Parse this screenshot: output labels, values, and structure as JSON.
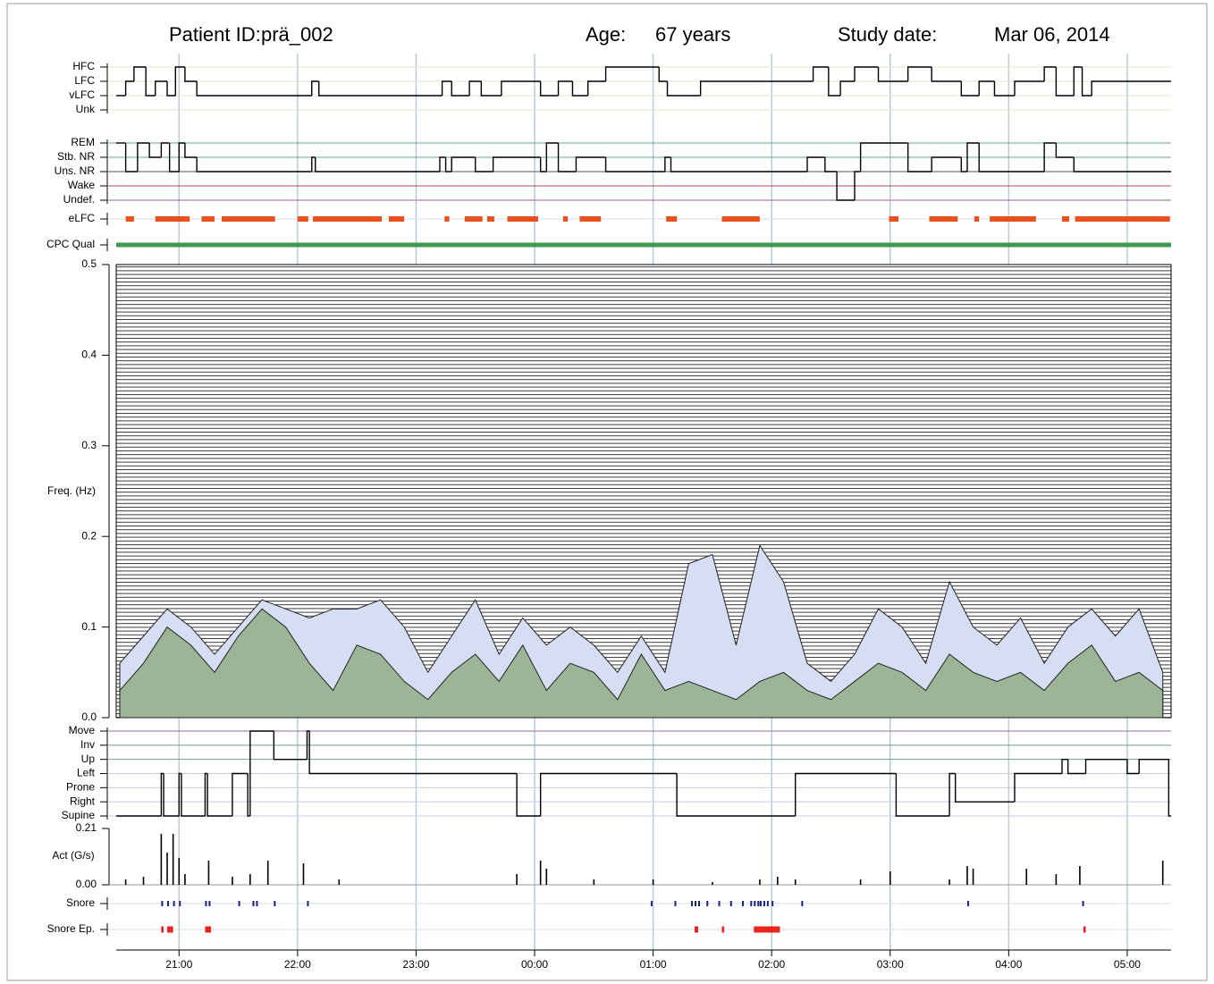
{
  "header": {
    "patient_id_label": "Patient ID:",
    "patient_id": "prä_002",
    "age_label": "Age:",
    "age": "67 years",
    "study_date_label": "Study date:",
    "study_date": "Mar 06, 2014"
  },
  "x_axis": {
    "xlim": [
      20.47,
      29.37
    ],
    "xticks": [
      {
        "value": 21,
        "label": "21:00"
      },
      {
        "value": 22,
        "label": "22:00"
      },
      {
        "value": 23,
        "label": "23:00"
      },
      {
        "value": 24,
        "label": "00:00"
      },
      {
        "value": 25,
        "label": "01:00"
      },
      {
        "value": 26,
        "label": "02:00"
      },
      {
        "value": 27,
        "label": "03:00"
      },
      {
        "value": 28,
        "label": "04:00"
      },
      {
        "value": 29,
        "label": "05:00"
      }
    ],
    "grid": true,
    "grid_color": "#b9cbd9"
  },
  "chart_data": [
    {
      "type": "step",
      "categories": [
        "HFC",
        "LFC",
        "vLFC",
        "Unk"
      ],
      "grid_colors": [
        "#e8e2c8",
        "#e8e2c8",
        "#e8e2c8",
        "#e8e2c8"
      ],
      "color": "#000000",
      "x": [
        20.47,
        20.55,
        20.62,
        20.72,
        20.8,
        20.9,
        20.97,
        21.05,
        21.15,
        22.12,
        22.18,
        23.22,
        23.3,
        23.45,
        23.55,
        23.72,
        24.05,
        24.2,
        24.32,
        24.45,
        24.6,
        25.05,
        25.12,
        25.4,
        26.35,
        26.48,
        26.58,
        26.7,
        26.9,
        27.15,
        27.35,
        27.6,
        27.75,
        27.88,
        28.05,
        28.3,
        28.4,
        28.55,
        28.62,
        28.7
      ],
      "values": [
        "vLFC",
        "LFC",
        "HFC",
        "vLFC",
        "LFC",
        "vLFC",
        "HFC",
        "LFC",
        "vLFC",
        "LFC",
        "vLFC",
        "LFC",
        "vLFC",
        "LFC",
        "vLFC",
        "LFC",
        "vLFC",
        "LFC",
        "vLFC",
        "LFC",
        "HFC",
        "LFC",
        "vLFC",
        "LFC",
        "HFC",
        "vLFC",
        "LFC",
        "HFC",
        "LFC",
        "HFC",
        "LFC",
        "vLFC",
        "LFC",
        "vLFC",
        "LFC",
        "HFC",
        "vLFC",
        "HFC",
        "vLFC",
        "LFC"
      ]
    },
    {
      "type": "step",
      "categories": [
        "REM",
        "Stb. NR",
        "Uns. NR",
        "Wake",
        "Undef."
      ],
      "grid_colors": [
        "#6aa58a",
        "#6aa58a",
        "#555555",
        "#b05050",
        "#9a6aa0"
      ],
      "color": "#000000",
      "x": [
        20.47,
        20.55,
        20.65,
        20.75,
        20.85,
        20.92,
        21.0,
        21.05,
        21.15,
        22.12,
        22.15,
        23.2,
        23.25,
        23.3,
        23.5,
        23.65,
        24.05,
        24.1,
        24.2,
        24.35,
        24.6,
        25.1,
        25.15,
        26.3,
        26.45,
        26.55,
        26.7,
        26.75,
        27.15,
        27.35,
        27.6,
        27.65,
        27.75,
        28.3,
        28.4,
        28.55
      ],
      "values": [
        "REM",
        "Uns. NR",
        "REM",
        "Stb. NR",
        "REM",
        "Uns. NR",
        "REM",
        "Stb. NR",
        "Uns. NR",
        "Stb. NR",
        "Uns. NR",
        "Stb. NR",
        "Uns. NR",
        "Stb. NR",
        "Uns. NR",
        "Stb. NR",
        "Uns. NR",
        "REM",
        "Uns. NR",
        "Stb. NR",
        "Uns. NR",
        "Stb. NR",
        "Uns. NR",
        "Stb. NR",
        "Uns. NR",
        "Undef.",
        "Uns. NR",
        "REM",
        "Uns. NR",
        "Stb. NR",
        "Uns. NR",
        "REM",
        "Uns. NR",
        "REM",
        "Stb. NR",
        "Uns. NR"
      ]
    },
    {
      "type": "events",
      "label": "eLFC",
      "color": "#e8501e",
      "x": [
        20.55,
        20.8,
        21.19,
        21.36,
        22.0,
        22.13,
        22.77,
        23.24,
        23.41,
        23.6,
        23.77,
        24.24,
        24.38,
        25.11,
        25.58,
        26.99,
        27.33,
        27.71,
        27.84,
        28.45,
        28.56
      ],
      "x_end": [
        20.62,
        21.09,
        21.3,
        21.81,
        22.09,
        22.71,
        22.9,
        23.28,
        23.56,
        23.66,
        24.03,
        24.28,
        24.56,
        25.2,
        25.9,
        27.07,
        27.57,
        27.75,
        28.23,
        28.51,
        29.36
      ]
    },
    {
      "type": "events",
      "label": "CPC Qual",
      "color": "#3f9a4f",
      "x": [
        20.47
      ],
      "x_end": [
        29.37
      ]
    },
    {
      "type": "area",
      "ylabel": "Freq. (Hz)",
      "ylim": [
        0,
        0.5
      ],
      "yticks": [
        {
          "value": 0,
          "label": "0.0"
        },
        0.1,
        0.2,
        0.3,
        0.4,
        0.5
      ],
      "x": [
        20.5,
        20.7,
        20.9,
        21.1,
        21.3,
        21.5,
        21.7,
        21.9,
        22.1,
        22.3,
        22.5,
        22.7,
        22.9,
        23.1,
        23.3,
        23.5,
        23.7,
        23.9,
        24.1,
        24.3,
        24.5,
        24.7,
        24.9,
        25.1,
        25.3,
        25.5,
        25.7,
        25.9,
        26.1,
        26.3,
        26.5,
        26.7,
        26.9,
        27.1,
        27.3,
        27.5,
        27.7,
        27.9,
        28.1,
        28.3,
        28.5,
        28.7,
        28.9,
        29.1,
        29.3
      ],
      "series": [
        {
          "color": "#d6def4",
          "values": [
            0.06,
            0.09,
            0.12,
            0.1,
            0.07,
            0.1,
            0.13,
            0.12,
            0.11,
            0.12,
            0.12,
            0.13,
            0.1,
            0.05,
            0.09,
            0.13,
            0.07,
            0.11,
            0.08,
            0.1,
            0.08,
            0.05,
            0.09,
            0.05,
            0.17,
            0.18,
            0.08,
            0.19,
            0.15,
            0.06,
            0.04,
            0.07,
            0.12,
            0.1,
            0.06,
            0.15,
            0.1,
            0.08,
            0.11,
            0.06,
            0.1,
            0.12,
            0.09,
            0.12,
            0.05
          ]
        },
        {
          "color": "#9bb596",
          "values": [
            0.03,
            0.06,
            0.1,
            0.08,
            0.05,
            0.09,
            0.12,
            0.1,
            0.06,
            0.03,
            0.08,
            0.07,
            0.04,
            0.02,
            0.05,
            0.07,
            0.04,
            0.08,
            0.03,
            0.06,
            0.05,
            0.02,
            0.07,
            0.03,
            0.04,
            0.03,
            0.02,
            0.04,
            0.05,
            0.03,
            0.02,
            0.04,
            0.06,
            0.05,
            0.03,
            0.07,
            0.05,
            0.04,
            0.05,
            0.03,
            0.06,
            0.08,
            0.04,
            0.05,
            0.03
          ]
        }
      ]
    },
    {
      "type": "step",
      "categories": [
        "Move",
        "Inv",
        "Up",
        "Left",
        "Prone",
        "Right",
        "Supine"
      ],
      "grid_colors": [
        "#9a6aa0",
        "#6aa58a",
        "#6aa58a",
        "#c8c8e0",
        "#c8c8e0",
        "#c8c8e0",
        "#c8c8e0"
      ],
      "color": "#000000",
      "x": [
        20.47,
        20.85,
        20.87,
        21.0,
        21.02,
        21.22,
        21.24,
        21.45,
        21.58,
        21.6,
        21.8,
        22.08,
        22.1,
        23.85,
        24.05,
        25.2,
        26.2,
        27.05,
        27.5,
        27.55,
        28.05,
        28.45,
        28.5,
        28.65,
        29.0,
        29.1,
        29.35
      ],
      "values": [
        "Supine",
        "Left",
        "Supine",
        "Left",
        "Supine",
        "Left",
        "Supine",
        "Left",
        "Supine",
        "Move",
        "Up",
        "Move",
        "Left",
        "Supine",
        "Left",
        "Supine",
        "Left",
        "Supine",
        "Left",
        "Right",
        "Left",
        "Up",
        "Left",
        "Up",
        "Left",
        "Up",
        "Supine"
      ]
    },
    {
      "type": "bar",
      "ylabel": "Act (G/s)",
      "ylim": [
        0,
        0.21
      ],
      "yticks": [
        {
          "value": 0,
          "label": "0.00"
        },
        0.21
      ],
      "color": "#000000",
      "x": [
        20.55,
        20.7,
        20.85,
        20.9,
        20.95,
        21.0,
        21.05,
        21.25,
        21.45,
        21.6,
        21.75,
        22.05,
        22.35,
        23.85,
        24.05,
        24.1,
        24.5,
        25.0,
        25.5,
        25.9,
        26.05,
        26.2,
        26.75,
        27.0,
        27.5,
        27.65,
        27.7,
        28.15,
        28.4,
        28.6,
        29.3
      ],
      "values": [
        0.02,
        0.03,
        0.19,
        0.12,
        0.19,
        0.1,
        0.04,
        0.09,
        0.03,
        0.04,
        0.09,
        0.08,
        0.02,
        0.04,
        0.09,
        0.06,
        0.02,
        0.02,
        0.01,
        0.02,
        0.03,
        0.02,
        0.02,
        0.05,
        0.02,
        0.07,
        0.06,
        0.06,
        0.04,
        0.07,
        0.09
      ]
    },
    {
      "type": "events",
      "label": "Snore",
      "color": "#1a237e",
      "x": [
        20.85,
        20.9,
        20.95,
        21.0,
        21.22,
        21.25,
        21.5,
        21.62,
        21.65,
        21.8,
        22.08,
        24.98,
        25.18,
        25.32,
        25.35,
        25.38,
        25.45,
        25.55,
        25.65,
        25.75,
        25.82,
        25.85,
        25.88,
        25.9,
        25.93,
        25.96,
        26.0,
        26.25,
        27.65,
        28.62
      ]
    },
    {
      "type": "events",
      "label": "Snore Ep.",
      "color": "#e8241e",
      "x": [
        20.85,
        20.9,
        21.22,
        25.35,
        25.58,
        25.85,
        28.63
      ],
      "x_end": [
        20.87,
        20.95,
        21.27,
        25.38,
        25.6,
        26.07,
        28.65
      ]
    }
  ]
}
